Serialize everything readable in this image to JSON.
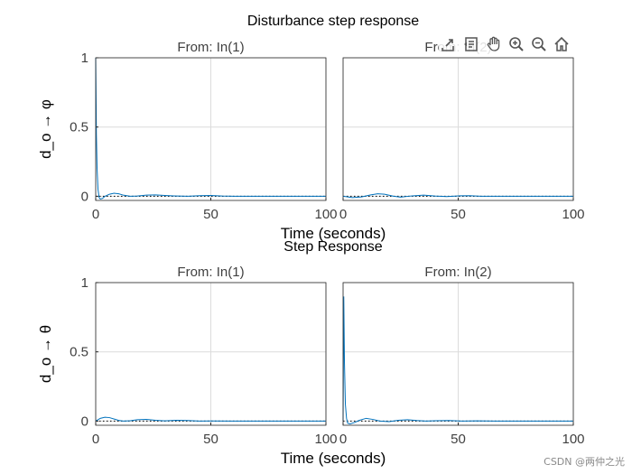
{
  "figure": {
    "title": "Disturbance step response",
    "secondary_title": "Step Response",
    "watermark": "CSDN @两仲之光"
  },
  "toolbar": {
    "items": [
      "export-icon",
      "data-tips-icon",
      "pan-icon",
      "zoom-in-icon",
      "zoom-out-icon",
      "home-icon"
    ]
  },
  "colors": {
    "line": "#0072bd",
    "axes": "#262626",
    "grid": "#dcdcdc",
    "text": "#404040"
  },
  "chart_data": [
    {
      "type": "line",
      "subplot": "top-left",
      "panel_title": "From: In(1)",
      "ylabel": "d_o → φ",
      "xlabel": "",
      "xlim": [
        0,
        100
      ],
      "ylim": [
        -0.03,
        1
      ],
      "xticks": [
        "0",
        "50",
        "100"
      ],
      "yticks": [
        "0",
        "0.5",
        "1"
      ],
      "grid": true,
      "series": [
        {
          "x": [
            0,
            0.3,
            0.6,
            1,
            1.5,
            2,
            3,
            4,
            6,
            8,
            10,
            12,
            15,
            18,
            22,
            26,
            30,
            34,
            40,
            45,
            50,
            55,
            60,
            70,
            80,
            90,
            100
          ],
          "values": [
            1.0,
            0.45,
            0.2,
            0.05,
            -0.01,
            -0.02,
            -0.015,
            0.0,
            0.015,
            0.022,
            0.018,
            0.008,
            0.0,
            0.002,
            0.008,
            0.01,
            0.006,
            0.003,
            0.0,
            0.004,
            0.006,
            0.002,
            0.0,
            0.0,
            0.0,
            0.0,
            0.0
          ]
        }
      ],
      "steady_state": 0
    },
    {
      "type": "line",
      "subplot": "top-right",
      "panel_title": "From: In(2)",
      "xlabel": "",
      "xlim": [
        0,
        100
      ],
      "ylim": [
        -0.03,
        1
      ],
      "xticks": [
        "0",
        "50",
        "100"
      ],
      "yticks": [],
      "grid": true,
      "series": [
        {
          "x": [
            0,
            4,
            8,
            12,
            15,
            18,
            22,
            25,
            30,
            35,
            40,
            45,
            50,
            55,
            60,
            70,
            80,
            90,
            100
          ],
          "values": [
            0.0,
            -0.01,
            -0.005,
            0.01,
            0.018,
            0.015,
            0.0,
            -0.006,
            0.003,
            0.008,
            0.002,
            -0.002,
            0.003,
            0.004,
            0.0,
            0.0,
            0.0,
            0.0,
            0.0
          ]
        }
      ],
      "steady_state": 0
    },
    {
      "type": "line",
      "subplot": "bottom-left",
      "panel_title": "From: In(1)",
      "ylabel": "d_o → θ",
      "xlabel": "Time (seconds)",
      "xlim": [
        0,
        100
      ],
      "ylim": [
        -0.03,
        1
      ],
      "xticks": [
        "0",
        "50",
        "100"
      ],
      "yticks": [
        "0",
        "0.5",
        "1"
      ],
      "grid": true,
      "series": [
        {
          "x": [
            0,
            2,
            4,
            6,
            8,
            10,
            12,
            15,
            18,
            22,
            26,
            30,
            35,
            40,
            45,
            50,
            60,
            70,
            80,
            90,
            100
          ],
          "values": [
            0.0,
            0.02,
            0.028,
            0.025,
            0.015,
            0.005,
            0.0,
            0.003,
            0.01,
            0.012,
            0.006,
            0.002,
            0.006,
            0.004,
            0.0,
            0.001,
            0.0,
            0.0,
            0.0,
            0.0,
            0.0
          ]
        }
      ],
      "steady_state": 0
    },
    {
      "type": "line",
      "subplot": "bottom-right",
      "panel_title": "From: In(2)",
      "xlabel": "Time (seconds)",
      "xlim": [
        0,
        100
      ],
      "ylim": [
        -0.03,
        1
      ],
      "xticks": [
        "0",
        "50",
        "100"
      ],
      "yticks": [],
      "grid": true,
      "series": [
        {
          "x": [
            0,
            0.3,
            0.6,
            1,
            1.5,
            2,
            3,
            5,
            7,
            10,
            13,
            16,
            20,
            24,
            28,
            32,
            36,
            40,
            46,
            52,
            58,
            66,
            75,
            85,
            100
          ],
          "values": [
            0.0,
            0.9,
            0.42,
            0.12,
            0.02,
            -0.015,
            -0.02,
            -0.01,
            0.005,
            0.02,
            0.012,
            0.0,
            -0.004,
            0.006,
            0.01,
            0.004,
            0.0,
            0.003,
            0.004,
            0.0,
            0.002,
            0.0,
            0.0,
            0.0,
            0.0
          ]
        }
      ],
      "steady_state": 0
    }
  ]
}
